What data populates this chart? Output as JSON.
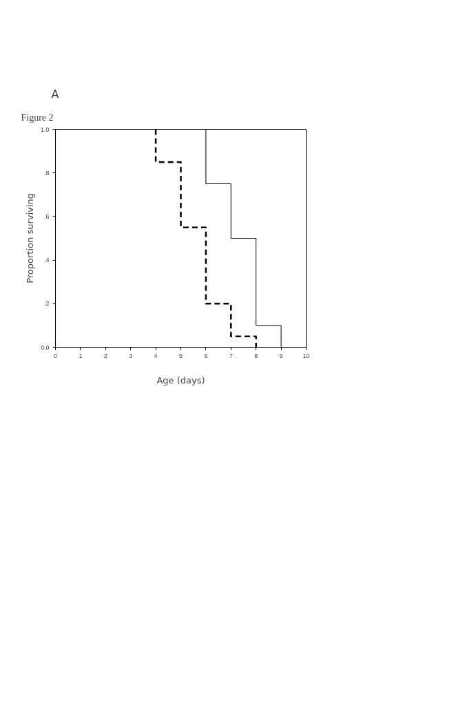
{
  "chart_data": {
    "type": "step",
    "title": "A",
    "xlabel": "Age (days)",
    "ylabel": "Proportion surviving",
    "annotations": [
      "Figure 2"
    ],
    "xlim": [
      0,
      10
    ],
    "xticks": [
      0,
      1,
      2,
      3,
      4,
      5,
      6,
      7,
      8,
      9,
      10
    ],
    "ylim": [
      0,
      1
    ],
    "yticks": [
      {
        "value": 0,
        "label": "0.0"
      },
      {
        "value": 0.2,
        "label": ".2"
      },
      {
        "value": 0.4,
        "label": ".4"
      },
      {
        "value": 0.6,
        "label": ".6"
      },
      {
        "value": 0.8,
        "label": ".8"
      },
      {
        "value": 1,
        "label": "1.0"
      }
    ],
    "grid": false,
    "marker": "none",
    "series": [
      {
        "color": "#000000",
        "line_style": "dashed",
        "x": [
          4,
          4,
          5,
          6,
          7,
          8
        ],
        "values": [
          1,
          0.85,
          0.55,
          0.2,
          0.05,
          0
        ]
      },
      {
        "color": "#000000",
        "line_style": "solid",
        "x": [
          6,
          6,
          7,
          8,
          9
        ],
        "values": [
          1,
          0.75,
          0.5,
          0.1,
          0
        ]
      }
    ]
  }
}
